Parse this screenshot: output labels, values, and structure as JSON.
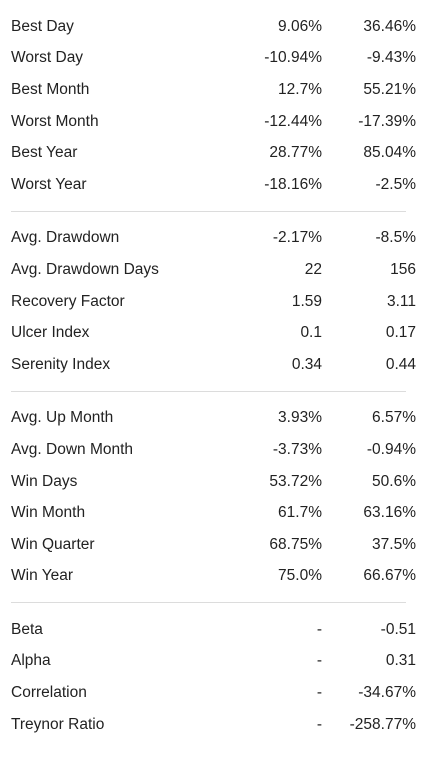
{
  "groups": [
    {
      "rows": [
        {
          "label": "Best Day",
          "v1": "9.06%",
          "v2": "36.46%"
        },
        {
          "label": "Worst Day",
          "v1": "-10.94%",
          "v2": "-9.43%"
        },
        {
          "label": "Best Month",
          "v1": "12.7%",
          "v2": "55.21%"
        },
        {
          "label": "Worst Month",
          "v1": "-12.44%",
          "v2": "-17.39%"
        },
        {
          "label": "Best Year",
          "v1": "28.77%",
          "v2": "85.04%"
        },
        {
          "label": "Worst Year",
          "v1": "-18.16%",
          "v2": "-2.5%"
        }
      ]
    },
    {
      "rows": [
        {
          "label": "Avg. Drawdown",
          "v1": "-2.17%",
          "v2": "-8.5%"
        },
        {
          "label": "Avg. Drawdown Days",
          "v1": "22",
          "v2": "156"
        },
        {
          "label": "Recovery Factor",
          "v1": "1.59",
          "v2": "3.11"
        },
        {
          "label": "Ulcer Index",
          "v1": "0.1",
          "v2": "0.17"
        },
        {
          "label": "Serenity Index",
          "v1": "0.34",
          "v2": "0.44"
        }
      ]
    },
    {
      "rows": [
        {
          "label": "Avg. Up Month",
          "v1": "3.93%",
          "v2": "6.57%"
        },
        {
          "label": "Avg. Down Month",
          "v1": "-3.73%",
          "v2": "-0.94%"
        },
        {
          "label": "Win Days",
          "v1": "53.72%",
          "v2": "50.6%"
        },
        {
          "label": "Win Month",
          "v1": "61.7%",
          "v2": "63.16%"
        },
        {
          "label": "Win Quarter",
          "v1": "68.75%",
          "v2": "37.5%"
        },
        {
          "label": "Win Year",
          "v1": "75.0%",
          "v2": "66.67%"
        }
      ]
    },
    {
      "rows": [
        {
          "label": "Beta",
          "v1": "-",
          "v2": "-0.51"
        },
        {
          "label": "Alpha",
          "v1": "-",
          "v2": "0.31"
        },
        {
          "label": "Correlation",
          "v1": "-",
          "v2": "-34.67%"
        },
        {
          "label": "Treynor Ratio",
          "v1": "-",
          "v2": "-258.77%"
        }
      ]
    }
  ]
}
